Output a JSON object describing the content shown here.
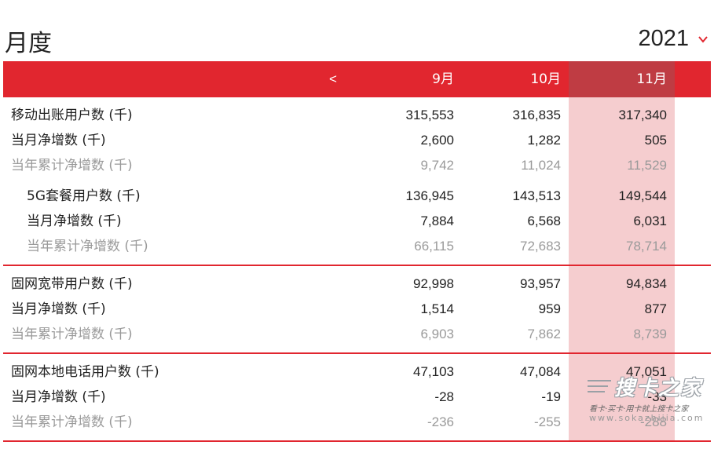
{
  "header": {
    "title": "月度",
    "year": "2021"
  },
  "table": {
    "prev_label": "<",
    "columns": [
      "9月",
      "10月",
      "11月"
    ],
    "highlight_color": "#f5cdcf",
    "accent_color": "#e1262f",
    "rows": [
      {
        "label": "移动出账用户数 (千)",
        "values": [
          "315,553",
          "316,835",
          "317,340"
        ]
      },
      {
        "label": "当月净增数 (千)",
        "values": [
          "2,600",
          "1,282",
          "505"
        ]
      },
      {
        "label": "当年累计净增数 (千)",
        "values": [
          "9,742",
          "11,024",
          "11,529"
        ]
      },
      {
        "label": "5G套餐用户数 (千)",
        "values": [
          "136,945",
          "143,513",
          "149,544"
        ]
      },
      {
        "label": "当月净增数 (千)",
        "values": [
          "7,884",
          "6,568",
          "6,031"
        ]
      },
      {
        "label": "当年累计净增数 (千)",
        "values": [
          "66,115",
          "72,683",
          "78,714"
        ]
      },
      {
        "label": "固网宽带用户数 (千)",
        "values": [
          "92,998",
          "93,957",
          "94,834"
        ]
      },
      {
        "label": "当月净增数 (千)",
        "values": [
          "1,514",
          "959",
          "877"
        ]
      },
      {
        "label": "当年累计净增数 (千)",
        "values": [
          "6,903",
          "7,862",
          "8,739"
        ]
      },
      {
        "label": "固网本地电话用户数 (千)",
        "values": [
          "47,103",
          "47,084",
          "47,051"
        ]
      },
      {
        "label": "当月净增数 (千)",
        "values": [
          "-28",
          "-19",
          "-33"
        ]
      },
      {
        "label": "当年累计净增数 (千)",
        "values": [
          "-236",
          "-255",
          "-288"
        ]
      }
    ]
  },
  "watermark": {
    "brand": "搜卡之家",
    "tagline": "看卡·买卡·用卡就上搜卡之家",
    "url": "www.sokazhijia.com"
  }
}
